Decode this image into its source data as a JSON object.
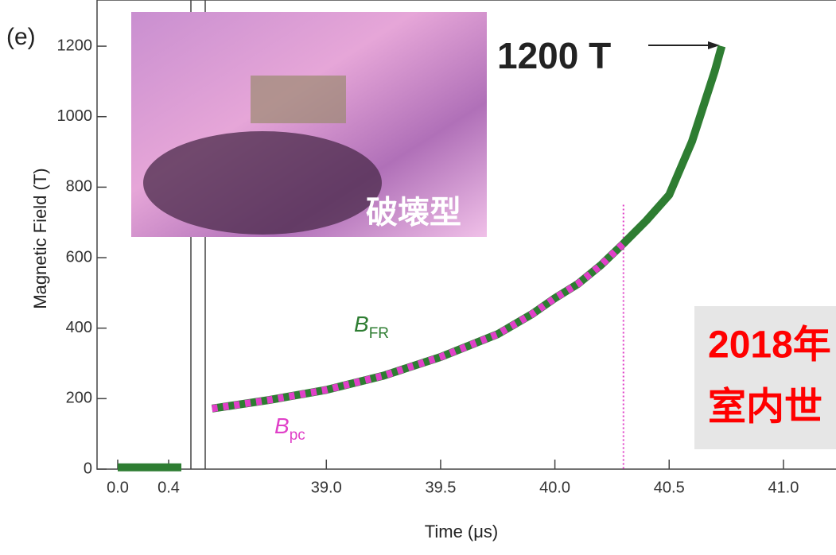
{
  "chart_data": {
    "type": "line",
    "panel_label": "(e)",
    "y_label": "Magnetic Field (T)",
    "x_label": "Time (μs)",
    "ylim": [
      0,
      1331
    ],
    "yticks": [
      0,
      200,
      400,
      600,
      800,
      1000,
      1200
    ],
    "x_segments": [
      {
        "xlim": [
          -0.1625,
          0.575
        ],
        "xticks": [
          {
            "value": 0,
            "label": "0.0"
          },
          {
            "value": 0.4,
            "label": "0.4"
          }
        ]
      },
      {
        "xlim": [
          38.47,
          41.23
        ],
        "xticks": [
          {
            "value": 39,
            "label": "39.0"
          },
          {
            "value": 39.5,
            "label": "39.5"
          },
          {
            "value": 40,
            "label": "40.0"
          },
          {
            "value": 40.5,
            "label": "40.5"
          },
          {
            "value": 41,
            "label": "41.0"
          }
        ]
      }
    ],
    "series": [
      {
        "name": "B",
        "subscript": "FR",
        "color": "#2e7d32",
        "x": [
          0,
          0.1,
          0.2,
          0.3,
          0.4,
          0.5,
          null,
          38.5,
          38.75,
          39.0,
          39.25,
          39.5,
          39.75,
          39.9,
          40.0,
          40.1,
          40.2,
          40.3,
          40.4,
          40.5,
          40.6,
          40.7,
          40.73
        ],
        "values": [
          5,
          5,
          5,
          5,
          5,
          5,
          null,
          172,
          196,
          225,
          265,
          318,
          383,
          440,
          485,
          525,
          578,
          640,
          705,
          778,
          930,
          1130,
          1200
        ]
      },
      {
        "name": "B",
        "subscript": "pc",
        "color": "#e040c8",
        "x": [
          38.5,
          38.75,
          39.0,
          39.25,
          39.5,
          39.75,
          39.9,
          40.0,
          40.1,
          40.2,
          40.3
        ],
        "values": [
          172,
          196,
          225,
          265,
          318,
          383,
          440,
          485,
          525,
          578,
          640
        ]
      }
    ],
    "marker_line": {
      "x": 40.3,
      "top": 750,
      "color": "#e040c8"
    },
    "annotation": "1200 T",
    "inset_caption": "破壊型",
    "overlay_lines": [
      "2018年",
      "室内世"
    ]
  }
}
